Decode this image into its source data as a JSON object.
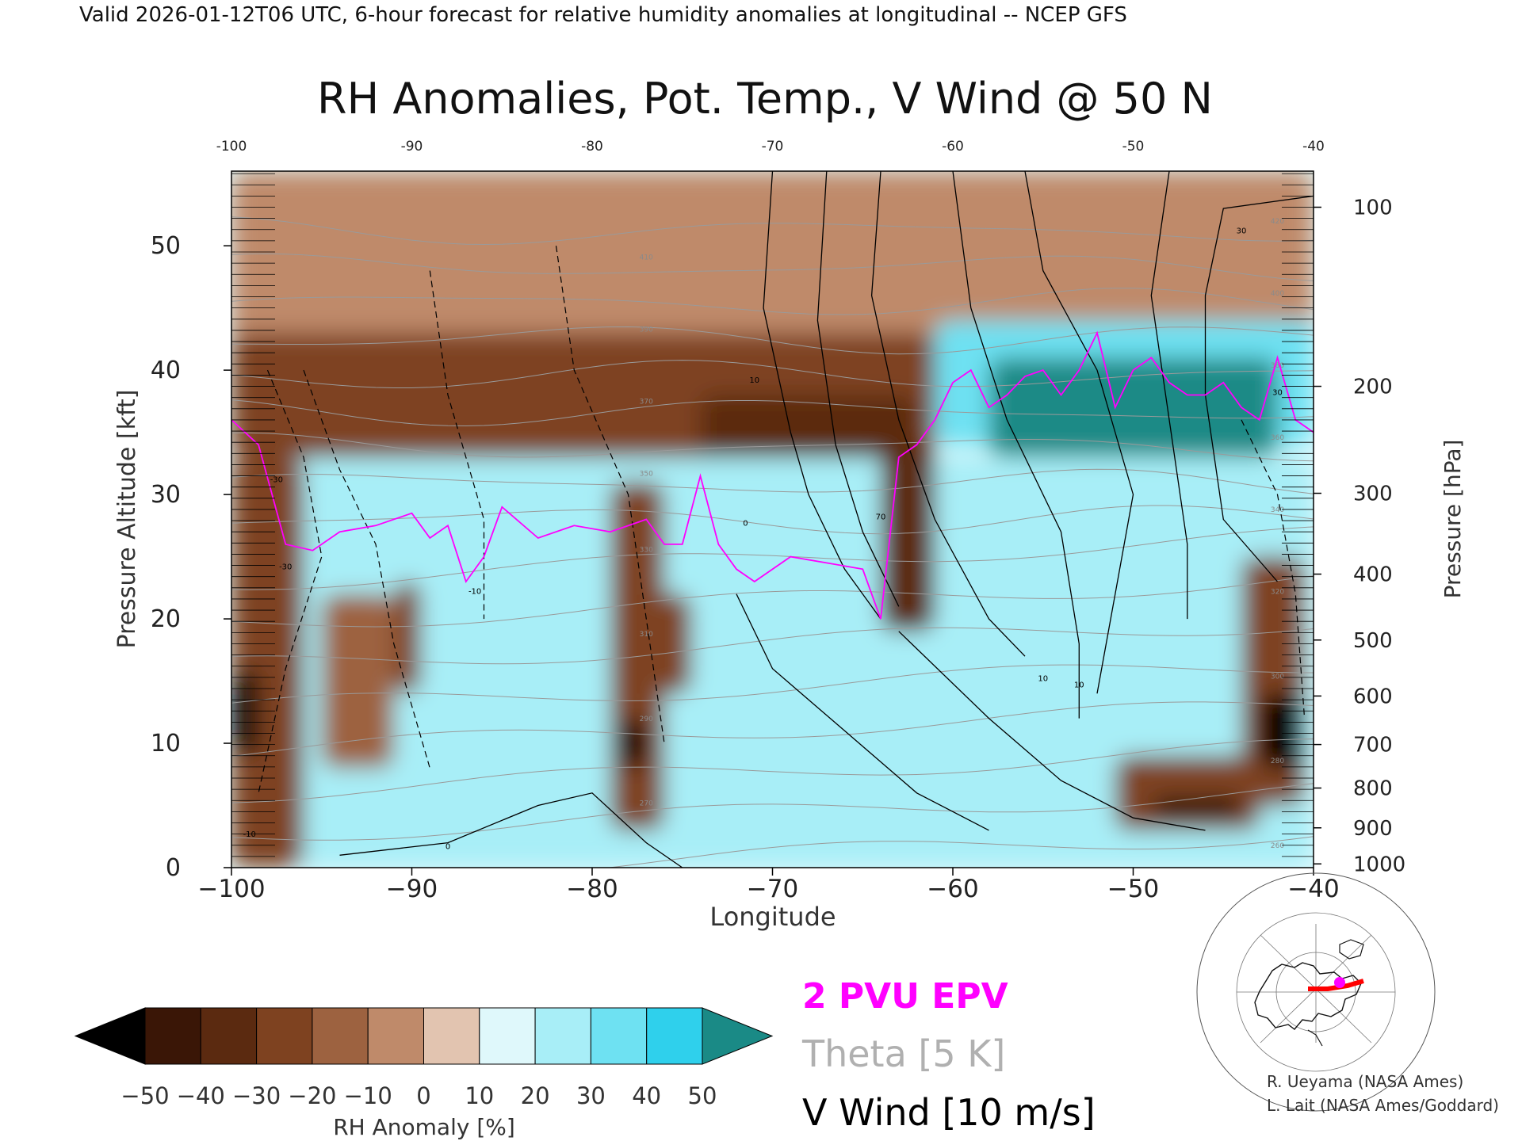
{
  "header": {
    "valid_line": "Valid 2026-01-12T06 UTC, 6-hour forecast for relative humidity anomalies at longitudinal -- NCEP GFS"
  },
  "chart_data": {
    "type": "heatmap",
    "title": "RH Anomalies, Pot. Temp., V Wind @ 50 N",
    "xlabel": "Longitude",
    "ylabel": "Pressure Altitude [kft]",
    "y2label": "Pressure [hPa]",
    "xlim": [
      -100,
      -40
    ],
    "ylim": [
      0,
      56
    ],
    "x_ticks": [
      -100,
      -90,
      -80,
      -70,
      -60,
      -50,
      -40
    ],
    "x_tick_labels": [
      "−100",
      "−90",
      "−80",
      "−70",
      "−60",
      "−50",
      "−40"
    ],
    "top_tick_labels": [
      "-100",
      "-90",
      "-80",
      "-70",
      "-60",
      "-50",
      "-40"
    ],
    "y_ticks": [
      0,
      10,
      20,
      30,
      40,
      50
    ],
    "y_tick_labels": [
      "0",
      "10",
      "20",
      "30",
      "40",
      "50"
    ],
    "pressure_ticks": [
      {
        "hpa": 100,
        "kft": 53.1
      },
      {
        "hpa": 200,
        "kft": 38.7
      },
      {
        "hpa": 300,
        "kft": 30.1
      },
      {
        "hpa": 400,
        "kft": 23.6
      },
      {
        "hpa": 500,
        "kft": 18.3
      },
      {
        "hpa": 600,
        "kft": 13.8
      },
      {
        "hpa": 700,
        "kft": 9.9
      },
      {
        "hpa": 800,
        "kft": 6.4
      },
      {
        "hpa": 900,
        "kft": 3.2
      },
      {
        "hpa": 1000,
        "kft": 0.3
      }
    ],
    "colorbar": {
      "label": "RH Anomaly [%]",
      "tick_labels": [
        "−50",
        "−40",
        "−30",
        "−20",
        "−10",
        "0",
        "10",
        "20",
        "30",
        "40",
        "50"
      ],
      "colors": [
        "#3a1606",
        "#5b2a10",
        "#7e4220",
        "#9d6240",
        "#bf8a6a",
        "#e2c4b0",
        "#dff8fb",
        "#a8eef7",
        "#6ee1f2",
        "#2fd0ec",
        "#12b2d8"
      ],
      "under_color": "#000000",
      "over_color": "#1a8a86"
    },
    "rh_regions": [
      {
        "x0": -100,
        "x1": -40,
        "y0": 41,
        "y1": 56,
        "v": -2
      },
      {
        "x0": -100,
        "x1": -61,
        "y0": 33,
        "y1": 43,
        "v": -22
      },
      {
        "x0": -89,
        "x1": -74,
        "y0": 33,
        "y1": 38,
        "v": -30
      },
      {
        "x0": -74,
        "x1": -62,
        "y0": 28,
        "y1": 38,
        "v": -40
      },
      {
        "x0": -73,
        "x1": -65,
        "y0": 29,
        "y1": 31.5,
        "v": -55
      },
      {
        "x0": -61,
        "x1": -40,
        "y0": 34,
        "y1": 44,
        "v": 30
      },
      {
        "x0": -58,
        "x1": -42,
        "y0": 33,
        "y1": 41,
        "v": 55
      },
      {
        "x0": -100,
        "x1": -40,
        "y0": 0,
        "y1": 33,
        "v": 22
      },
      {
        "x0": -100,
        "x1": -96,
        "y0": 0,
        "y1": 33,
        "v": -25
      },
      {
        "x0": -100,
        "x1": -98.5,
        "y0": 9,
        "y1": 16,
        "v": -55
      },
      {
        "x0": -95,
        "x1": -91,
        "y0": 8,
        "y1": 22,
        "v": -15
      },
      {
        "x0": -91,
        "x1": -89.5,
        "y0": 14,
        "y1": 23,
        "v": -25
      },
      {
        "x0": -79,
        "x1": -76,
        "y0": 3,
        "y1": 31,
        "v": -25
      },
      {
        "x0": -78.5,
        "x1": -77,
        "y0": 8,
        "y1": 12,
        "v": -55
      },
      {
        "x0": -76.5,
        "x1": -74.5,
        "y0": 14,
        "y1": 22,
        "v": -30
      },
      {
        "x0": -64,
        "x1": -61,
        "y0": 19,
        "y1": 34,
        "v": -35
      },
      {
        "x0": -51,
        "x1": -43,
        "y0": 3,
        "y1": 9,
        "v": -30
      },
      {
        "x0": -49,
        "x1": -44,
        "y0": 4.2,
        "y1": 5.6,
        "v": -55
      },
      {
        "x0": -44,
        "x1": -40.5,
        "y0": 5,
        "y1": 25,
        "v": -30
      },
      {
        "x0": -43,
        "x1": -40.5,
        "y0": 8,
        "y1": 14,
        "v": -55
      }
    ],
    "epv_2pvu": [
      [
        -100,
        36
      ],
      [
        -98.5,
        34
      ],
      [
        -97,
        26
      ],
      [
        -95.5,
        25.5
      ],
      [
        -94,
        27
      ],
      [
        -92,
        27.5
      ],
      [
        -90,
        28.5
      ],
      [
        -89,
        26.5
      ],
      [
        -88,
        27.5
      ],
      [
        -87,
        23
      ],
      [
        -86,
        25
      ],
      [
        -85,
        29
      ],
      [
        -83,
        26.5
      ],
      [
        -81,
        27.5
      ],
      [
        -79,
        27
      ],
      [
        -77,
        28
      ],
      [
        -76,
        26
      ],
      [
        -75,
        26
      ],
      [
        -74,
        31.5
      ],
      [
        -73,
        26
      ],
      [
        -72,
        24
      ],
      [
        -71,
        23
      ],
      [
        -69,
        25
      ],
      [
        -67,
        24.5
      ],
      [
        -65,
        24
      ],
      [
        -64,
        20
      ],
      [
        -63,
        33
      ],
      [
        -62,
        34
      ],
      [
        -61,
        36
      ],
      [
        -60,
        39
      ],
      [
        -59,
        40
      ],
      [
        -58,
        37
      ],
      [
        -57,
        38
      ],
      [
        -56,
        39.5
      ],
      [
        -55,
        40
      ],
      [
        -54,
        38
      ],
      [
        -53,
        40
      ],
      [
        -52,
        43
      ],
      [
        -51,
        37
      ],
      [
        -50,
        40
      ],
      [
        -49,
        41
      ],
      [
        -48,
        39
      ],
      [
        -47,
        38
      ],
      [
        -46,
        38
      ],
      [
        -45,
        39
      ],
      [
        -44,
        37
      ],
      [
        -43,
        36
      ],
      [
        -42,
        41
      ],
      [
        -41,
        36
      ],
      [
        -40,
        35
      ]
    ],
    "theta_levels_k": [
      260,
      270,
      280,
      290,
      300,
      310,
      320,
      330,
      340,
      350,
      360,
      370,
      380,
      390,
      400,
      410,
      420
    ],
    "theta_labels_shown": [
      "260",
      "270",
      "280",
      "290",
      "300",
      "310",
      "320",
      "330",
      "340",
      "350",
      "360",
      "370",
      "380",
      "390",
      "400",
      "410",
      "420"
    ],
    "v_wind_labels_shown": [
      "-30",
      "-30",
      "-10",
      "-10",
      "0",
      "0",
      "10",
      "10",
      "10",
      "30",
      "30",
      "70"
    ],
    "legend_entries": [
      {
        "label": "2 PVU EPV",
        "color": "#ff00ff"
      },
      {
        "label": "Theta [5 K]",
        "color": "#b0b0b0"
      },
      {
        "label": "V Wind [10 m/s]",
        "color": "#000000"
      }
    ]
  },
  "credits": {
    "line1": "R. Ueyama (NASA Ames)",
    "line2": "L. Lait (NASA Ames/Goddard)"
  },
  "locator_map": {
    "track_color": "#ff0000",
    "marker_color": "#ff00ff"
  }
}
